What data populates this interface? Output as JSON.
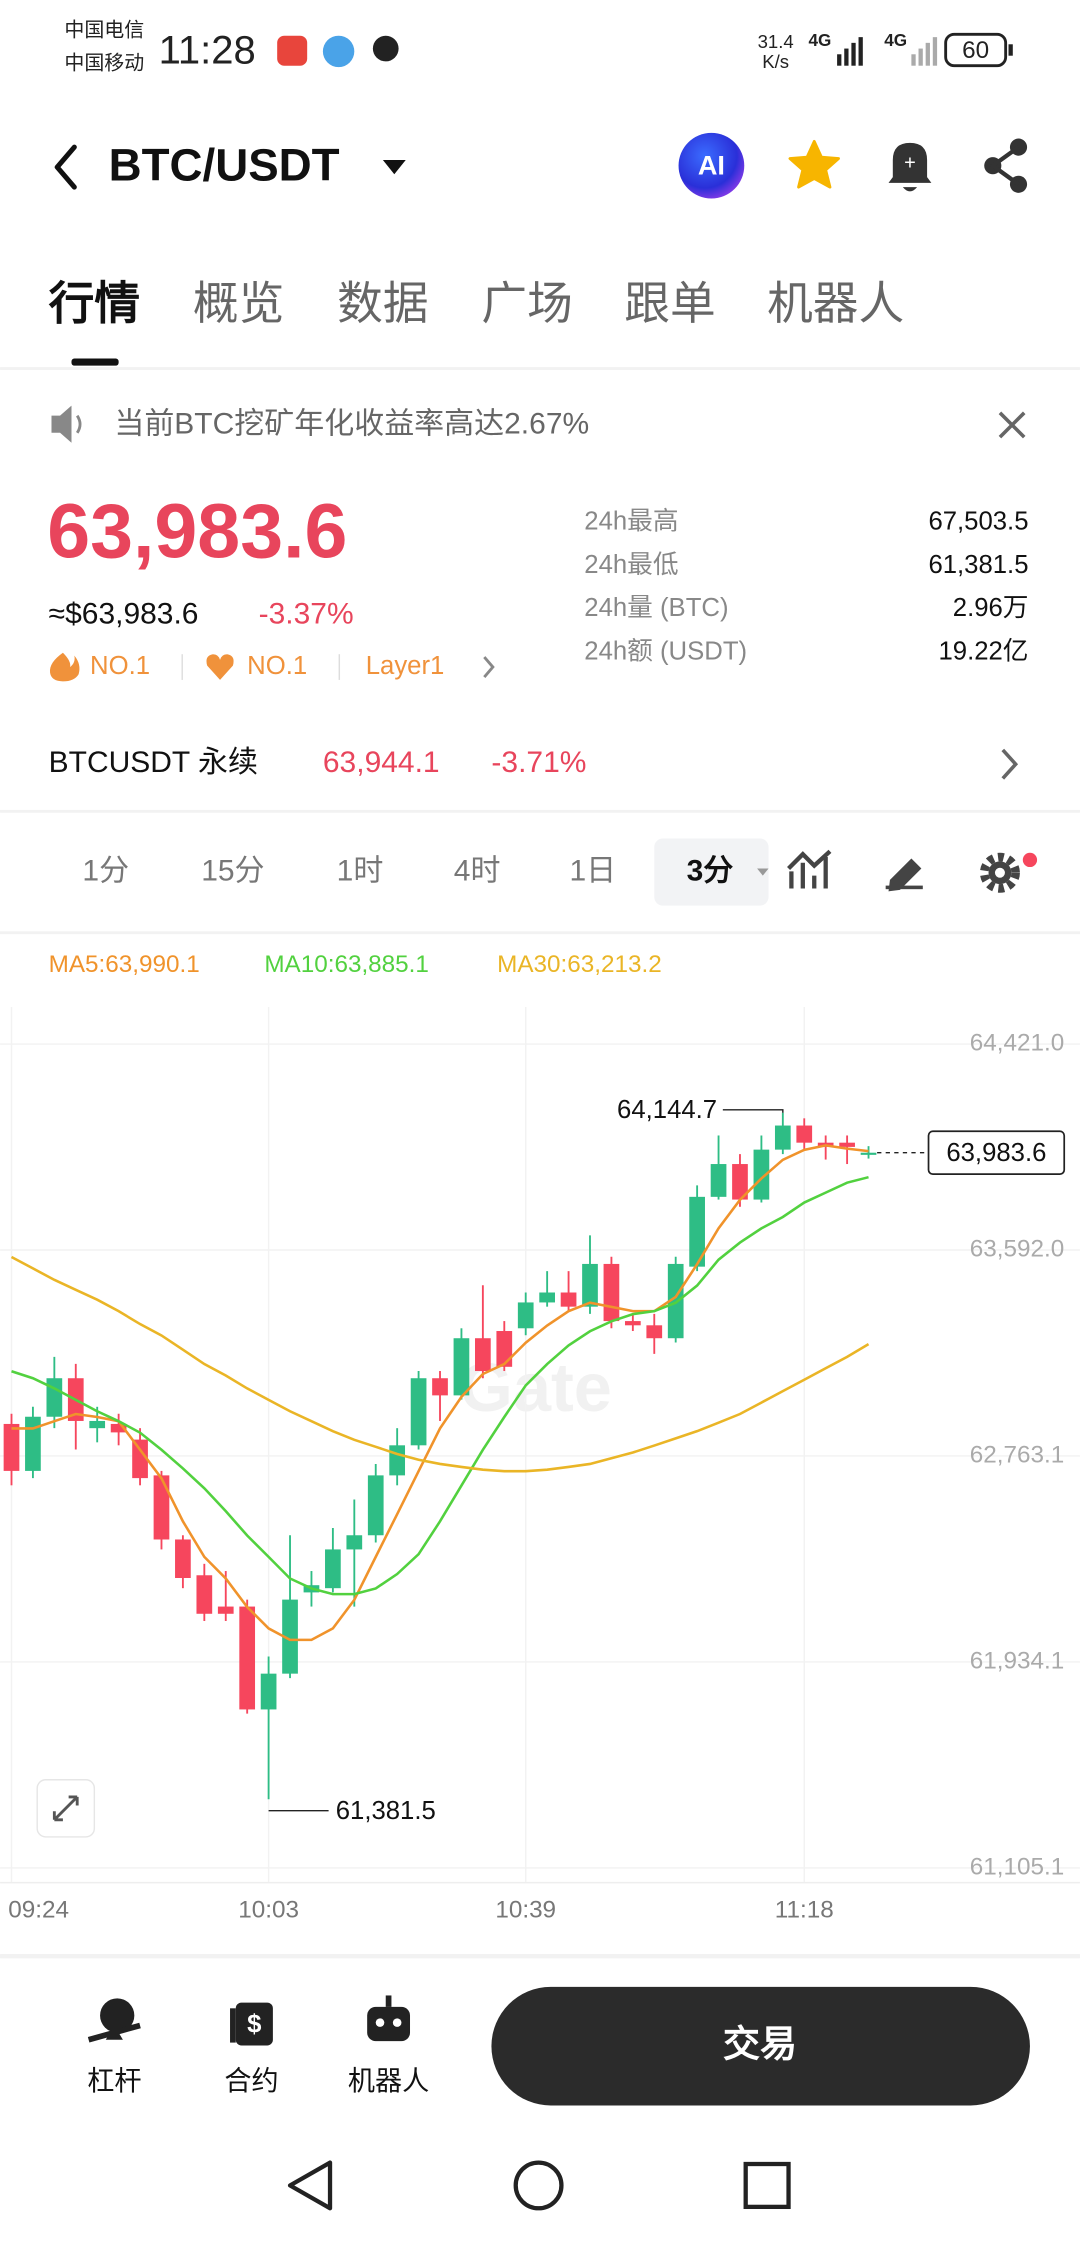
{
  "status_bar": {
    "carrier1": "中国电信",
    "carrier2": "中国移动",
    "time": "11:28",
    "speed": "31.4",
    "speed_unit": "K/s",
    "net1": "4G",
    "net2": "4G",
    "battery": "60"
  },
  "header": {
    "pair": "BTC/USDT",
    "ai": "AI"
  },
  "tabs": [
    "行情",
    "概览",
    "数据",
    "广场",
    "跟单",
    "机器人"
  ],
  "notice": "当前BTC挖矿年化收益率高达2.67%",
  "price": {
    "last": "63,983.6",
    "usd": "≈$63,983.6",
    "change": "-3.37%",
    "badges": [
      "NO.1",
      "NO.1",
      "Layer1"
    ]
  },
  "stats": [
    {
      "label": "24h最高",
      "value": "67,503.5"
    },
    {
      "label": "24h最低",
      "value": "61,381.5"
    },
    {
      "label": "24h量 (BTC)",
      "value": "2.96万"
    },
    {
      "label": "24h额 (USDT)",
      "value": "19.22亿"
    }
  ],
  "perp": {
    "name": "BTCUSDT 永续",
    "price": "63,944.1",
    "change": "-3.71%"
  },
  "intervals": [
    "1分",
    "15分",
    "1时",
    "4时",
    "1日",
    "3分"
  ],
  "ma_legend": [
    "MA5:63,990.1",
    "MA10:63,885.1",
    "MA30:63,213.2"
  ],
  "chart_data": {
    "type": "candlestick",
    "watermark": "Gate",
    "categories": [
      "09:24",
      null,
      null,
      null,
      null,
      null,
      null,
      null,
      null,
      null,
      null,
      null,
      "10:03",
      null,
      null,
      null,
      null,
      null,
      null,
      null,
      null,
      null,
      null,
      null,
      "10:39",
      null,
      null,
      null,
      null,
      null,
      null,
      null,
      null,
      null,
      null,
      null,
      null,
      "11:18",
      null,
      null,
      null
    ],
    "open": [
      62892,
      62703,
      62921,
      63076,
      62875,
      62892,
      62829,
      62685,
      62427,
      62283,
      62157,
      62157,
      61743,
      61887,
      62214,
      62231,
      62387,
      62444,
      62685,
      62806,
      63076,
      63007,
      63237,
      63266,
      63277,
      63381,
      63421,
      63364,
      63536,
      63306,
      63289,
      63237,
      63525,
      63806,
      63938,
      63795,
      63996,
      64093,
      64024,
      64024,
      63975
    ],
    "high": [
      62933,
      62961,
      63162,
      63134,
      62961,
      62933,
      62875,
      62703,
      62444,
      62329,
      62300,
      62185,
      61956,
      62444,
      62300,
      62473,
      62588,
      62731,
      62875,
      63105,
      63105,
      63277,
      63450,
      63306,
      63421,
      63507,
      63507,
      63651,
      63565,
      63335,
      63335,
      63565,
      63852,
      64053,
      63978,
      64053,
      64144.7,
      64122,
      64053,
      64053,
      64010
    ],
    "low": [
      62645,
      62674,
      62875,
      62789,
      62818,
      62806,
      62645,
      62387,
      62231,
      62099,
      62099,
      61726,
      61381.5,
      61869,
      62157,
      62214,
      62157,
      62415,
      62645,
      62789,
      62904,
      62990,
      63076,
      63105,
      63249,
      63364,
      63346,
      63335,
      63277,
      63266,
      63174,
      63220,
      63507,
      63795,
      63766,
      63783,
      63978,
      63996,
      63956,
      63938,
      63960
    ],
    "close": [
      62703,
      62921,
      63076,
      62904,
      62904,
      62858,
      62674,
      62427,
      62272,
      62128,
      62128,
      61743,
      61887,
      62185,
      62243,
      62387,
      62444,
      62685,
      62806,
      63076,
      63007,
      63237,
      63105,
      63122,
      63381,
      63421,
      63364,
      63536,
      63306,
      63289,
      63237,
      63536,
      63806,
      63938,
      63795,
      63996,
      64093,
      64024,
      64007,
      64007,
      63983.6
    ],
    "up_color": "#2ebd85",
    "down_color": "#f6465d",
    "lines": [
      {
        "color": "#f0932b",
        "values": [
          62874,
          62874,
          62903,
          62932,
          62920,
          62903,
          62788,
          62673,
          62500,
          62357,
          62270,
          62155,
          62069,
          62023,
          62023,
          62069,
          62184,
          62357,
          62529,
          62702,
          62874,
          63001,
          63093,
          63133,
          63219,
          63288,
          63346,
          63380,
          63363,
          63346,
          63346,
          63403,
          63535,
          63679,
          63794,
          63880,
          63955,
          63995,
          64013,
          64000,
          63990.1
        ]
      },
      {
        "color": "#52d13f",
        "values": [
          63104,
          63076,
          63035,
          62989,
          62943,
          62903,
          62857,
          62788,
          62713,
          62633,
          62541,
          62443,
          62357,
          62270,
          62230,
          62207,
          62207,
          62230,
          62288,
          62368,
          62500,
          62644,
          62788,
          62920,
          63047,
          63133,
          63208,
          63265,
          63305,
          63334,
          63346,
          63380,
          63449,
          63553,
          63622,
          63679,
          63725,
          63783,
          63823,
          63863,
          63885.1
        ]
      },
      {
        "color": "#eab526",
        "values": [
          63564,
          63518,
          63472,
          63432,
          63392,
          63346,
          63294,
          63248,
          63191,
          63133,
          63087,
          63035,
          62989,
          62943,
          62903,
          62863,
          62828,
          62800,
          62771,
          62748,
          62731,
          62719,
          62708,
          62702,
          62702,
          62708,
          62719,
          62731,
          62754,
          62777,
          62805,
          62834,
          62863,
          62897,
          62932,
          62978,
          63024,
          63070,
          63116,
          63162,
          63213.2
        ]
      }
    ],
    "ylim": [
      61046,
      64570
    ],
    "yticks": [
      {
        "value": 61105.1,
        "label": "61,105.1"
      },
      {
        "value": 61934.1,
        "label": "61,934.1"
      },
      {
        "value": 62763.1,
        "label": "62,763.1"
      },
      {
        "value": 63592,
        "label": "63,592.0"
      },
      {
        "value": 64421,
        "label": "64,421.0"
      }
    ],
    "grid": true,
    "max_label": {
      "value": 64144.7,
      "label": "64,144.7"
    },
    "min_label": {
      "value": 61381.5,
      "label": "61,381.5"
    },
    "last_price": {
      "value": 63983.6,
      "label": "63,983.6"
    }
  },
  "bottom_nav": {
    "items": [
      "杠杆",
      "合约",
      "机器人"
    ],
    "trade": "交易"
  }
}
